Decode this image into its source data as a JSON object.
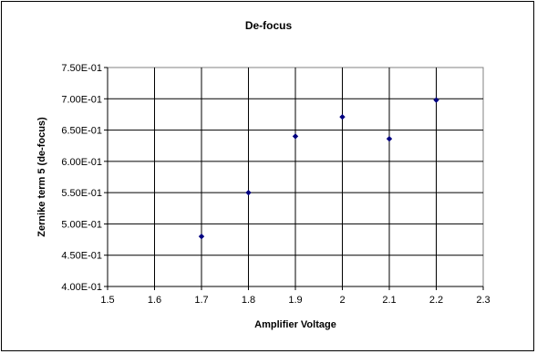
{
  "chart_data": {
    "type": "scatter",
    "title": "De-focus",
    "xlabel": "Amplifier Voltage",
    "ylabel": "Zernike term 5 (de-focus)",
    "xlim": [
      1.5,
      2.3
    ],
    "ylim": [
      0.4,
      0.75
    ],
    "x_ticks": [
      "1.5",
      "1.6",
      "1.7",
      "1.8",
      "1.9",
      "2",
      "2.1",
      "2.2",
      "2.3"
    ],
    "y_ticks": [
      "4.00E-01",
      "4.50E-01",
      "5.00E-01",
      "5.50E-01",
      "6.00E-01",
      "6.50E-01",
      "7.00E-01",
      "7.50E-01"
    ],
    "grid": true,
    "marker_color": "#000080",
    "points": [
      {
        "x": 1.7,
        "y": 0.48
      },
      {
        "x": 1.8,
        "y": 0.55
      },
      {
        "x": 1.9,
        "y": 0.64
      },
      {
        "x": 2.0,
        "y": 0.671
      },
      {
        "x": 2.1,
        "y": 0.636
      },
      {
        "x": 2.2,
        "y": 0.698
      }
    ]
  }
}
